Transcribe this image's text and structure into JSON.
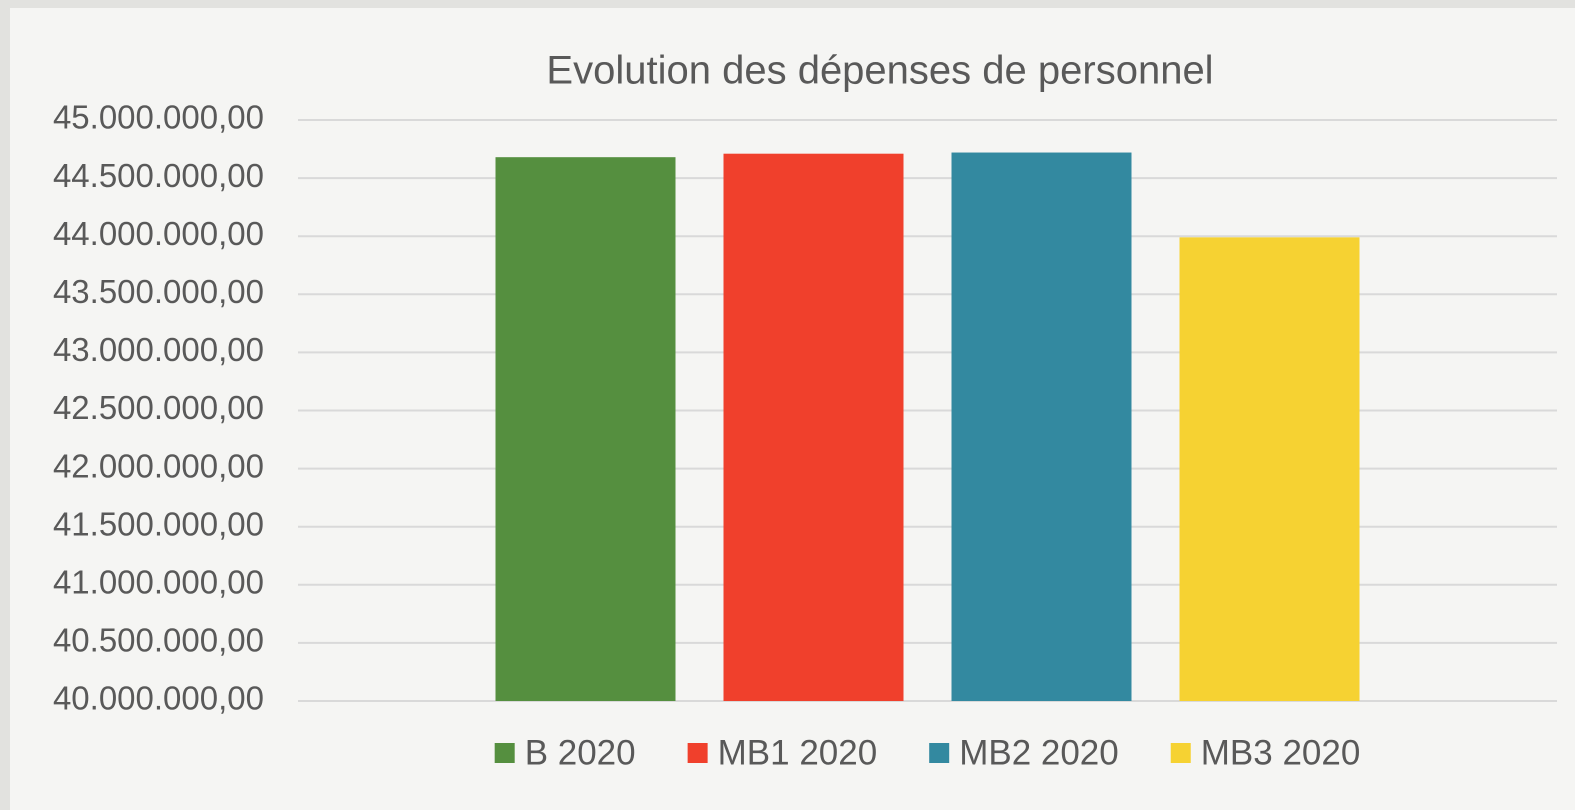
{
  "chart_data": {
    "type": "bar",
    "title": "Evolution des dépenses de personnel",
    "categories": [
      null
    ],
    "series": [
      {
        "name": "B 2020",
        "color": "#558f3f",
        "values": [
          44680000
        ]
      },
      {
        "name": "MB1 2020",
        "color": "#f0402c",
        "values": [
          44710000
        ]
      },
      {
        "name": "MB2 2020",
        "color": "#3389a0",
        "values": [
          44720000
        ]
      },
      {
        "name": "MB3 2020",
        "color": "#f6d232",
        "values": [
          43990000
        ]
      }
    ],
    "ylim": [
      40000000,
      45000000
    ],
    "yticks": [
      {
        "value": 40000000,
        "label": "40.000.000,00"
      },
      {
        "value": 40500000,
        "label": "40.500.000,00"
      },
      {
        "value": 41000000,
        "label": "41.000.000,00"
      },
      {
        "value": 41500000,
        "label": "41.500.000,00"
      },
      {
        "value": 42000000,
        "label": "42.000.000,00"
      },
      {
        "value": 42500000,
        "label": "42.500.000,00"
      },
      {
        "value": 43000000,
        "label": "43.000.000,00"
      },
      {
        "value": 43500000,
        "label": "43.500.000,00"
      },
      {
        "value": 44000000,
        "label": "44.000.000,00"
      },
      {
        "value": 44500000,
        "label": "44.500.000,00"
      },
      {
        "value": 45000000,
        "label": "45.000.000,00"
      }
    ],
    "grid": true,
    "legend": "bottom"
  }
}
